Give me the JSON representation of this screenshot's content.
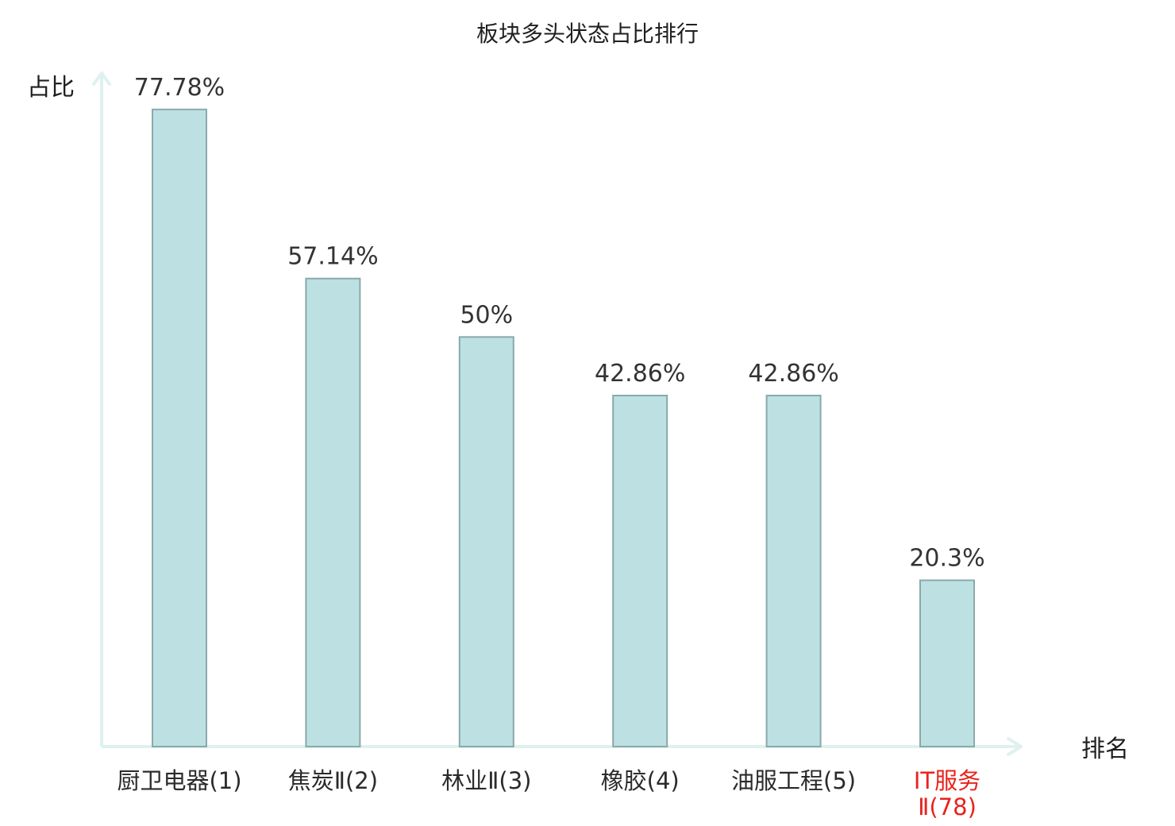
{
  "chart_data": {
    "type": "bar",
    "title": "板块多头状态占比排行",
    "xlabel": "排名",
    "ylabel": "占比",
    "ylim": [
      0,
      83
    ],
    "grid": false,
    "legend": "none",
    "categories": [
      {
        "lines": [
          "厨卫电器(1)"
        ],
        "highlight": false
      },
      {
        "lines": [
          "焦炭Ⅱ(2)"
        ],
        "highlight": false
      },
      {
        "lines": [
          "林业Ⅱ(3)"
        ],
        "highlight": false
      },
      {
        "lines": [
          "橡胶(4)"
        ],
        "highlight": false
      },
      {
        "lines": [
          "油服工程(5)"
        ],
        "highlight": false
      },
      {
        "lines": [
          "IT服务",
          "Ⅱ(78)"
        ],
        "highlight": true
      }
    ],
    "values": [
      77.78,
      57.14,
      50,
      42.86,
      42.86,
      20.3
    ],
    "value_labels": [
      "77.78%",
      "57.14%",
      "50%",
      "42.86%",
      "42.86%",
      "20.3%"
    ],
    "colors": {
      "bar_fill": "#bde0e3",
      "bar_stroke": "#8aa9ab",
      "axis": "#dff1ef",
      "text": "#2b2b2b",
      "highlight_text": "#e8231c"
    }
  }
}
